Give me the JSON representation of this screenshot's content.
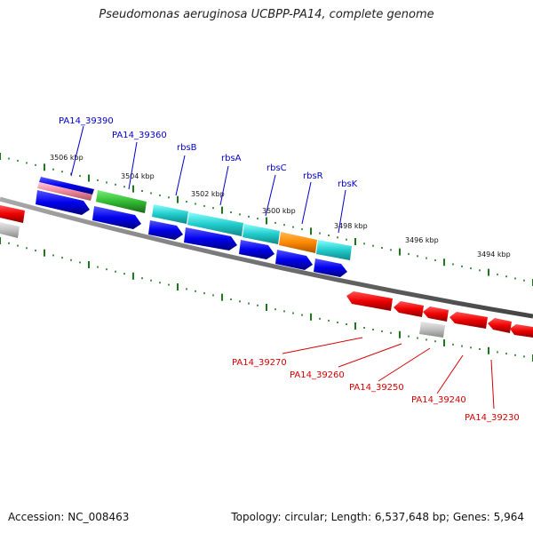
{
  "title": "Pseudomonas aeruginosa UCBPP-PA14, complete genome",
  "footer": {
    "accession": "Accession: NC_008463",
    "summary": "Topology: circular; Length: 6,537,648 bp; Genes: 5,964"
  },
  "colors": {
    "background": "#ffffff",
    "backbone": "#777777",
    "tick": "#1a7a1a",
    "top_label": "#0000cc",
    "bottom_label": "#d40000",
    "forward_gene": "#0000ee",
    "reverse_gene": "#ee0000",
    "pseudo_gene": "#c0c0c0",
    "rbs_gene": "#22cccc",
    "green_gene": "#33bb33",
    "orange_gene": "#ff8800",
    "pink_gene": "#ee8899"
  },
  "scale_labels": [
    "3506 kbp",
    "3504 kbp",
    "3502 kbp",
    "3500 kbp",
    "3498 kbp",
    "3496 kbp",
    "3494 kbp"
  ],
  "top_gene_labels": [
    "PA14_39390",
    "PA14_39360",
    "rbsB",
    "rbsA",
    "rbsC",
    "rbsR",
    "rbsK"
  ],
  "bottom_gene_labels": [
    "PA14_39270",
    "PA14_39260",
    "PA14_39250",
    "PA14_39240",
    "PA14_39230"
  ]
}
